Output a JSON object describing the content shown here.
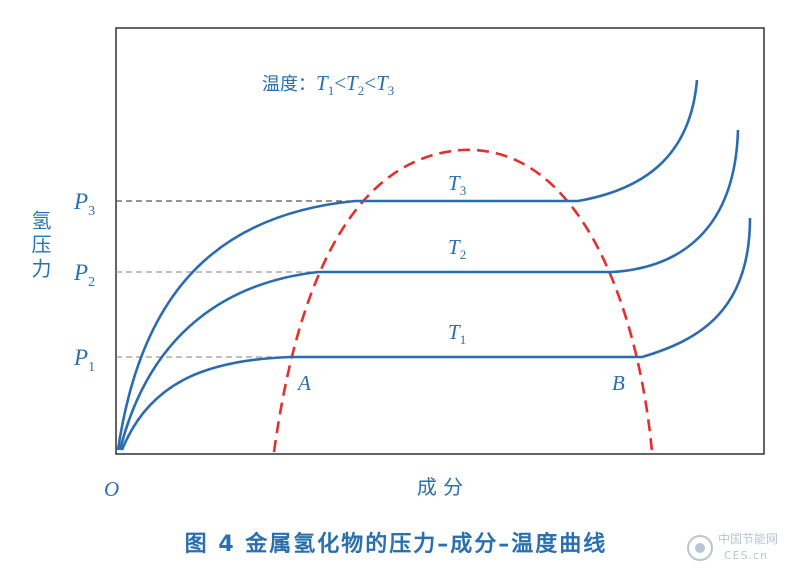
{
  "legend": {
    "prefix": "温度：",
    "t1": "T",
    "t1_sub": "1",
    "lt1": "<",
    "t2": "T",
    "t2_sub": "2",
    "lt2": "<",
    "t3": "T",
    "t3_sub": "3"
  },
  "axes": {
    "y_label": "氢压力",
    "x_label": "成 分",
    "origin": "O"
  },
  "pressures": [
    {
      "main": "P",
      "sub": "3"
    },
    {
      "main": "P",
      "sub": "2"
    },
    {
      "main": "P",
      "sub": "1"
    }
  ],
  "curves": [
    {
      "main": "T",
      "sub": "3"
    },
    {
      "main": "T",
      "sub": "2"
    },
    {
      "main": "T",
      "sub": "1"
    }
  ],
  "points": {
    "a": "A",
    "b": "B"
  },
  "caption": "图 4  金属氢化物的压力–成分–温度曲线",
  "watermark": {
    "cn": "中国节能网",
    "url": "CES.cn"
  },
  "colors": {
    "curve": "#2b6cb0",
    "dome": "#e03030",
    "dashed_level": "#9a9a9a",
    "frame": "#222222",
    "text": "#2a6fae"
  }
}
